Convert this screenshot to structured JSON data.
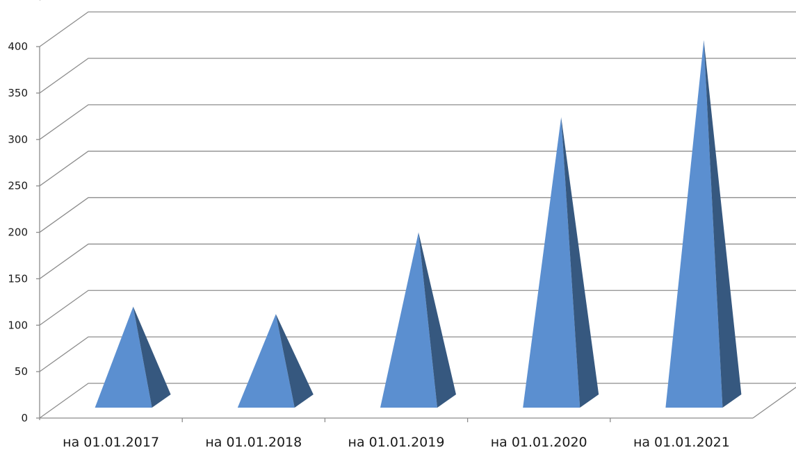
{
  "chart_data": {
    "type": "bar",
    "style": "3d-pyramid",
    "categories": [
      "на 01.01.2017",
      "на 01.01.2018",
      "на 01.01.2019",
      "на 01.01.2020",
      "на 01.01.2021"
    ],
    "values": [
      120,
      112,
      200,
      324,
      407
    ],
    "ylim": [
      0,
      450
    ],
    "yticks": [
      0,
      50,
      100,
      150,
      200,
      250,
      300,
      350,
      400
    ],
    "grid": true,
    "legend": "none",
    "title": "",
    "xlabel": "",
    "ylabel": "",
    "colors": {
      "front": "#5b8fd0",
      "side": "#36587f",
      "grid": "#8c8c8c"
    }
  }
}
